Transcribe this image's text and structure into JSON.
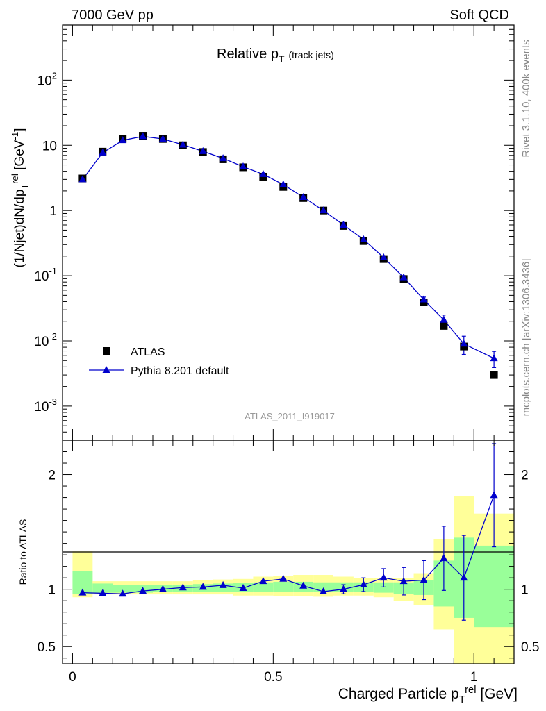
{
  "header": {
    "left": "7000 GeV pp",
    "right": "Soft QCD"
  },
  "side_labels": {
    "rivet": "Rivet 3.1.10,  400k events",
    "mcplots": "mcplots.cern.ch [arXiv:1306.3436]"
  },
  "colors": {
    "atlas": "#000000",
    "pythia": "#0000cc",
    "band_inner": "#99ff99",
    "band_outer": "#ffff99"
  },
  "chart_data": [
    {
      "type": "scatter",
      "panel": "main",
      "title": "Relative p_T",
      "title_sub": "(track jets)",
      "ylabel": "(1/Njet)dN/dp_T^rel [GeV^-1]",
      "yscale": "log",
      "ylim": [
        0.0003,
        700
      ],
      "xlim": [
        -0.025,
        1.1
      ],
      "y_tick_labels": [
        "10^-3",
        "10^-2",
        "10^-1",
        "1",
        "10",
        "10^2"
      ],
      "watermark": "ATLAS_2011_I919017",
      "legend_position": "bottom-left",
      "x": [
        0.025,
        0.075,
        0.125,
        0.175,
        0.225,
        0.275,
        0.325,
        0.375,
        0.425,
        0.475,
        0.525,
        0.575,
        0.625,
        0.675,
        0.725,
        0.775,
        0.825,
        0.875,
        0.925,
        0.975,
        1.05
      ],
      "series": [
        {
          "name": "ATLAS",
          "marker": "square",
          "values": [
            3.1,
            8.0,
            12.5,
            14.0,
            12.5,
            10.0,
            7.9,
            6.1,
            4.6,
            3.3,
            2.3,
            1.55,
            1.0,
            0.58,
            0.34,
            0.18,
            0.089,
            0.039,
            0.017,
            0.0082,
            0.003
          ]
        },
        {
          "name": "Pythia 8.201 default",
          "marker": "triangle",
          "line": true,
          "values": [
            3.0,
            7.7,
            11.9,
            13.7,
            12.5,
            10.2,
            8.1,
            6.3,
            4.7,
            3.6,
            2.5,
            1.6,
            1.0,
            0.6,
            0.36,
            0.19,
            0.094,
            0.043,
            0.021,
            0.009,
            0.0054
          ],
          "err": [
            0.0,
            0.0,
            0.0,
            0.0,
            0.0,
            0.0,
            0.0,
            0.0,
            0.0,
            0.0,
            0.0,
            0.0,
            0.0,
            0.0,
            0.0,
            0.0,
            0.006,
            0.004,
            0.004,
            0.0028,
            0.0015
          ]
        }
      ]
    },
    {
      "type": "line",
      "panel": "ratio",
      "ylabel": "Ratio to ATLAS",
      "xlabel": "Charged Particle p_T^rel [GeV]",
      "xlim": [
        -0.025,
        1.1
      ],
      "ylim": [
        0.35,
        2.3
      ],
      "x_tick_labels": [
        "0",
        "0.5",
        "1"
      ],
      "y_tick_labels": [
        "0.5",
        "1",
        "2"
      ],
      "x": [
        0.025,
        0.075,
        0.125,
        0.175,
        0.225,
        0.275,
        0.325,
        0.375,
        0.425,
        0.475,
        0.525,
        0.575,
        0.625,
        0.675,
        0.725,
        0.775,
        0.825,
        0.875,
        0.925,
        0.975,
        1.05
      ],
      "ratio": [
        0.97,
        0.965,
        0.96,
        0.985,
        1.0,
        1.015,
        1.02,
        1.035,
        1.01,
        1.07,
        1.09,
        1.03,
        0.98,
        1.0,
        1.04,
        1.1,
        1.07,
        1.08,
        1.27,
        1.1,
        1.82
      ],
      "ratio_err": [
        0,
        0,
        0,
        0,
        0,
        0,
        0,
        0,
        0,
        0,
        0,
        0,
        0,
        0.04,
        0.06,
        0.08,
        0.12,
        0.17,
        0.28,
        0.37,
        0.45
      ],
      "band_edges": [
        0.0,
        0.05,
        0.1,
        0.15,
        0.2,
        0.25,
        0.3,
        0.35,
        0.4,
        0.45,
        0.5,
        0.55,
        0.6,
        0.65,
        0.7,
        0.75,
        0.8,
        0.85,
        0.9,
        0.95,
        1.0,
        1.1
      ],
      "band_inner_lo": [
        0.96,
        0.97,
        0.97,
        0.97,
        0.975,
        0.975,
        0.975,
        0.975,
        0.975,
        0.975,
        0.975,
        0.975,
        0.975,
        0.975,
        0.975,
        0.97,
        0.96,
        0.95,
        0.85,
        0.75,
        0.67
      ],
      "band_inner_hi": [
        1.16,
        1.05,
        1.04,
        1.04,
        1.04,
        1.04,
        1.045,
        1.05,
        1.055,
        1.06,
        1.065,
        1.065,
        1.06,
        1.06,
        1.06,
        1.06,
        1.06,
        1.08,
        1.25,
        1.45,
        1.38
      ],
      "band_outer_lo": [
        0.93,
        0.955,
        0.955,
        0.955,
        0.955,
        0.955,
        0.955,
        0.955,
        0.945,
        0.945,
        0.94,
        0.94,
        0.935,
        0.945,
        0.945,
        0.93,
        0.9,
        0.86,
        0.65,
        0.35,
        0.35
      ],
      "band_outer_hi": [
        1.33,
        1.07,
        1.07,
        1.07,
        1.07,
        1.07,
        1.08,
        1.085,
        1.09,
        1.11,
        1.115,
        1.125,
        1.125,
        1.11,
        1.1,
        1.1,
        1.1,
        1.14,
        1.44,
        1.81,
        1.66
      ]
    }
  ]
}
